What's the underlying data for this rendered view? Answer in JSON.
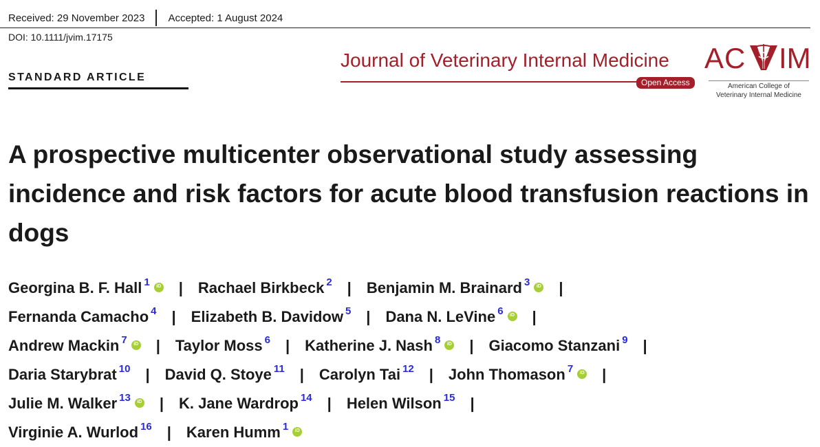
{
  "header": {
    "received": "Received: 29 November 2023",
    "accepted": "Accepted: 1 August 2024",
    "doi": "DOI: 10.1111/jvim.17175",
    "article_type": "STANDARD ARTICLE"
  },
  "journal": {
    "name": "Journal of Veterinary Internal Medicine",
    "open_access": "Open Access",
    "brand_color": "#a3202b"
  },
  "society": {
    "logo_text": "AC IM",
    "line1": "American College of",
    "line2": "Veterinary Internal Medicine"
  },
  "title": "A prospective multicenter observational study assessing incidence and risk factors for acute blood transfusion reactions in dogs",
  "author_lines": [
    [
      {
        "name": "Georgina B. F. Hall",
        "aff": "1",
        "orcid": true
      },
      {
        "name": "Rachael Birkbeck",
        "aff": "2",
        "orcid": false
      },
      {
        "name": "Benjamin M. Brainard",
        "aff": "3",
        "orcid": true
      }
    ],
    [
      {
        "name": "Fernanda Camacho",
        "aff": "4",
        "orcid": false
      },
      {
        "name": "Elizabeth B. Davidow",
        "aff": "5",
        "orcid": false
      },
      {
        "name": "Dana N. LeVine",
        "aff": "6",
        "orcid": true
      }
    ],
    [
      {
        "name": "Andrew Mackin",
        "aff": "7",
        "orcid": true
      },
      {
        "name": "Taylor Moss",
        "aff": "6",
        "orcid": false
      },
      {
        "name": "Katherine J. Nash",
        "aff": "8",
        "orcid": true
      },
      {
        "name": "Giacomo Stanzani",
        "aff": "9",
        "orcid": false
      }
    ],
    [
      {
        "name": "Daria Starybrat",
        "aff": "10",
        "orcid": false
      },
      {
        "name": "David Q. Stoye",
        "aff": "11",
        "orcid": false
      },
      {
        "name": "Carolyn Tai",
        "aff": "12",
        "orcid": false
      },
      {
        "name": "John Thomason",
        "aff": "7",
        "orcid": true
      }
    ],
    [
      {
        "name": "Julie M. Walker",
        "aff": "13",
        "orcid": true
      },
      {
        "name": "K. Jane Wardrop",
        "aff": "14",
        "orcid": false
      },
      {
        "name": "Helen Wilson",
        "aff": "15",
        "orcid": false
      }
    ],
    [
      {
        "name": "Virginie A. Wurlod",
        "aff": "16",
        "orcid": false
      },
      {
        "name": "Karen Humm",
        "aff": "1",
        "orcid": true
      }
    ]
  ],
  "trailing_bar_lines": [
    0,
    1,
    2,
    3,
    4
  ],
  "separator": "|",
  "orcid_icon": "orcid-icon",
  "affiliation_color": "#2a2adb"
}
